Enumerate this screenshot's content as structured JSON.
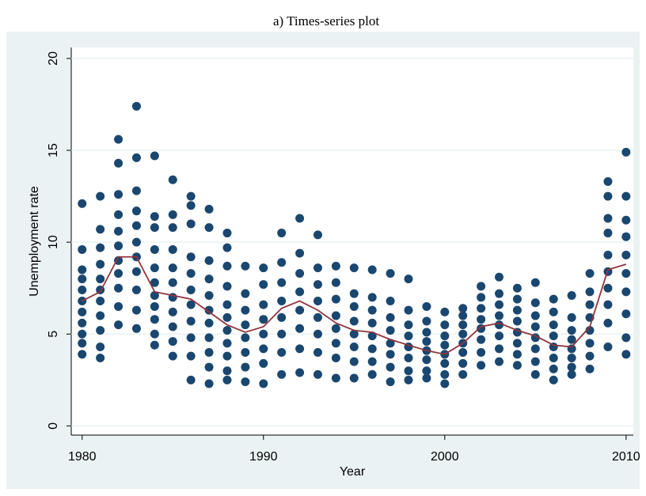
{
  "chart_data": {
    "type": "scatter",
    "title": "a) Times-series plot",
    "x_label": "Year",
    "y_label": "Unemployment rate",
    "x": [
      1980,
      1981,
      1982,
      1983,
      1984,
      1985,
      1986,
      1987,
      1988,
      1989,
      1990,
      1991,
      1992,
      1993,
      1994,
      1995,
      1996,
      1997,
      1998,
      1999,
      2000,
      2001,
      2002,
      2003,
      2004,
      2005,
      2006,
      2007,
      2008,
      2009,
      2010
    ],
    "series": [
      {
        "color": "#1a476f",
        "values": [
          [
            3.9,
            4.5,
            5.0,
            5.6,
            6.2,
            6.8,
            7.4,
            8.0,
            8.5,
            9.6,
            12.1
          ],
          [
            3.7,
            4.3,
            5.2,
            6.0,
            6.8,
            7.4,
            8.0,
            8.8,
            9.7,
            10.7,
            12.5
          ],
          [
            5.5,
            6.5,
            7.5,
            8.3,
            9.0,
            9.8,
            10.6,
            11.5,
            12.6,
            14.3,
            15.6
          ],
          [
            5.3,
            6.3,
            7.4,
            8.4,
            9.2,
            10.0,
            10.9,
            11.7,
            12.8,
            14.6,
            17.4
          ],
          [
            4.4,
            5.0,
            5.8,
            6.5,
            7.1,
            7.8,
            8.6,
            9.6,
            10.8,
            11.4,
            14.7
          ],
          [
            3.8,
            4.6,
            5.4,
            6.2,
            7.0,
            7.8,
            8.6,
            9.6,
            10.8,
            11.5,
            13.4
          ],
          [
            2.5,
            3.8,
            4.8,
            5.7,
            6.6,
            7.4,
            8.3,
            9.2,
            11.0,
            12.0,
            12.5
          ],
          [
            2.3,
            3.2,
            4.0,
            4.8,
            5.6,
            6.3,
            7.1,
            8.0,
            9.0,
            10.8,
            11.8
          ],
          [
            2.5,
            3.0,
            3.8,
            4.5,
            5.2,
            5.9,
            6.6,
            7.6,
            8.7,
            9.7,
            10.5
          ],
          [
            2.4,
            3.2,
            4.0,
            4.8,
            5.5,
            6.3,
            7.2,
            8.7
          ],
          [
            2.3,
            3.4,
            4.2,
            5.0,
            5.8,
            6.6,
            7.7,
            8.6
          ],
          [
            2.8,
            4.0,
            5.0,
            5.9,
            6.8,
            7.8,
            8.9,
            10.5
          ],
          [
            2.9,
            4.2,
            5.3,
            6.3,
            7.3,
            8.3,
            9.4,
            11.3
          ],
          [
            2.8,
            4.0,
            5.0,
            5.9,
            6.8,
            7.7,
            8.6,
            10.4
          ],
          [
            2.6,
            3.7,
            4.5,
            5.3,
            6.0,
            6.9,
            7.8,
            8.7
          ],
          [
            2.6,
            3.5,
            4.3,
            5.0,
            5.7,
            6.5,
            7.2,
            8.6
          ],
          [
            2.8,
            3.5,
            4.2,
            4.9,
            5.6,
            6.3,
            7.0,
            8.5
          ],
          [
            2.4,
            3.2,
            3.9,
            4.5,
            5.2,
            5.9,
            6.8,
            8.3
          ],
          [
            2.5,
            3.0,
            3.7,
            4.3,
            4.9,
            5.5,
            6.3,
            8.0
          ],
          [
            2.6,
            3.0,
            3.6,
            4.1,
            4.6,
            5.1,
            5.7,
            6.5
          ],
          [
            2.3,
            2.8,
            3.4,
            3.9,
            4.4,
            4.9,
            5.5,
            6.2
          ],
          [
            2.8,
            3.4,
            4.0,
            4.5,
            5.0,
            5.5,
            6.0,
            6.4
          ],
          [
            3.3,
            4.0,
            4.7,
            5.3,
            5.8,
            6.4,
            7.0,
            7.6
          ],
          [
            3.5,
            4.2,
            4.9,
            5.5,
            6.0,
            6.6,
            7.2,
            8.1
          ],
          [
            3.3,
            3.9,
            4.5,
            5.1,
            5.7,
            6.3,
            6.9,
            7.5
          ],
          [
            2.8,
            3.5,
            4.2,
            4.8,
            5.4,
            6.0,
            6.7,
            7.8
          ],
          [
            2.5,
            3.1,
            3.7,
            4.3,
            4.9,
            5.5,
            6.2,
            6.9
          ],
          [
            2.8,
            3.2,
            3.7,
            4.2,
            4.7,
            5.2,
            5.9,
            7.1
          ],
          [
            3.1,
            3.8,
            4.5,
            5.2,
            5.9,
            6.6,
            7.3,
            8.3
          ],
          [
            4.3,
            5.6,
            6.6,
            7.5,
            8.4,
            9.3,
            10.5,
            11.3,
            12.5,
            13.3
          ],
          [
            3.9,
            4.8,
            6.1,
            7.3,
            8.3,
            9.3,
            10.3,
            11.2,
            12.5,
            14.9
          ]
        ]
      },
      {
        "type": "line",
        "color": "#90353b",
        "values": [
          6.8,
          7.3,
          9.2,
          9.2,
          7.3,
          7.1,
          6.9,
          6.2,
          5.5,
          5.1,
          5.4,
          6.4,
          6.8,
          6.3,
          5.6,
          5.2,
          5.1,
          4.7,
          4.4,
          4.1,
          3.9,
          4.5,
          5.4,
          5.6,
          5.2,
          4.9,
          4.4,
          4.3,
          5.4,
          8.5,
          8.8
        ]
      }
    ],
    "xlim": [
      1979.4,
      2010.4
    ],
    "ylim": [
      -0.5,
      20.6
    ],
    "xticks": [
      1980,
      1990,
      2000,
      2010
    ],
    "yticks": [
      0,
      5,
      10,
      15,
      20
    ],
    "grid": true
  }
}
